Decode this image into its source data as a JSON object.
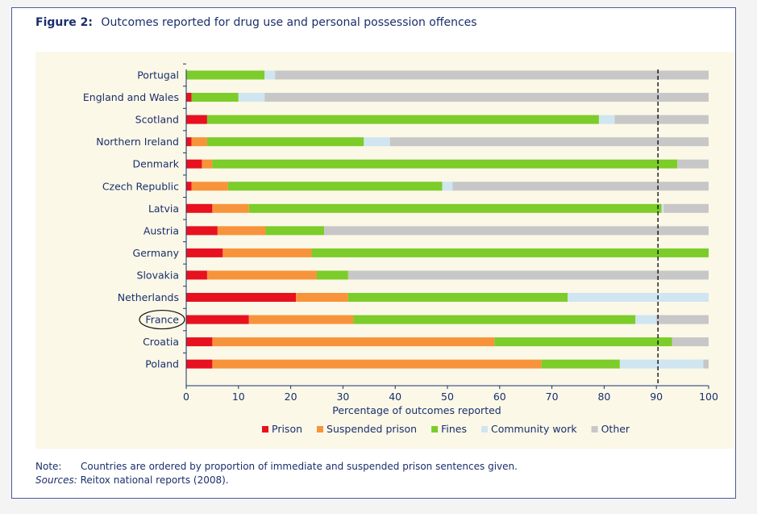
{
  "figure": {
    "label": "Figure 2:",
    "title": "Outcomes reported for drug use and personal possession offences"
  },
  "note": {
    "label": "Note:",
    "text": "Countries are ordered by proportion of immediate and suspended prison sentences given.",
    "sources_label": "Sources:",
    "sources_text": "Reitox national reports (2008)."
  },
  "colors": {
    "Prison": "#e8111f",
    "Suspended prison": "#f7943b",
    "Fines": "#7ccc2a",
    "Community work": "#cfe6f1",
    "Other": "#c7c7c7",
    "text": "#1a2f6b"
  },
  "chart_data": {
    "type": "bar",
    "orientation": "horizontal",
    "stacked": true,
    "categories": [
      "Portugal",
      "England and Wales",
      "Scotland",
      "Northern Ireland",
      "Denmark",
      "Czech Republic",
      "Latvia",
      "Austria",
      "Germany",
      "Slovakia",
      "Netherlands",
      "France",
      "Croatia",
      "Poland"
    ],
    "highlighted_category": "France",
    "series": [
      {
        "name": "Prison",
        "values": [
          0,
          1,
          4,
          1,
          3,
          1,
          5,
          6,
          7,
          4,
          21,
          12,
          5,
          5
        ]
      },
      {
        "name": "Suspended prison",
        "values": [
          0,
          0,
          0,
          3,
          2,
          7,
          7,
          9.2,
          17,
          21,
          10,
          20,
          54,
          63
        ]
      },
      {
        "name": "Fines",
        "values": [
          15,
          9,
          75,
          30,
          89,
          41,
          79,
          11.2,
          76,
          6,
          42,
          54,
          34,
          15
        ]
      },
      {
        "name": "Community work",
        "values": [
          2,
          5,
          3,
          5,
          0,
          2,
          0.4,
          0,
          0,
          0,
          27,
          4,
          0,
          16
        ]
      },
      {
        "name": "Other",
        "values": [
          83,
          85,
          18,
          61,
          6,
          49,
          8.6,
          73.6,
          0,
          69,
          0,
          10,
          7,
          1
        ]
      }
    ],
    "xlabel": "Percentage of outcomes reported",
    "xlim": [
      0,
      100
    ],
    "xticks": [
      "0",
      "10",
      "20",
      "30",
      "40",
      "50",
      "60",
      "70",
      "80",
      "90",
      "100"
    ],
    "reference_line": {
      "x": 90.3,
      "style": "dashed"
    },
    "legend_position": "bottom",
    "grid": false
  }
}
